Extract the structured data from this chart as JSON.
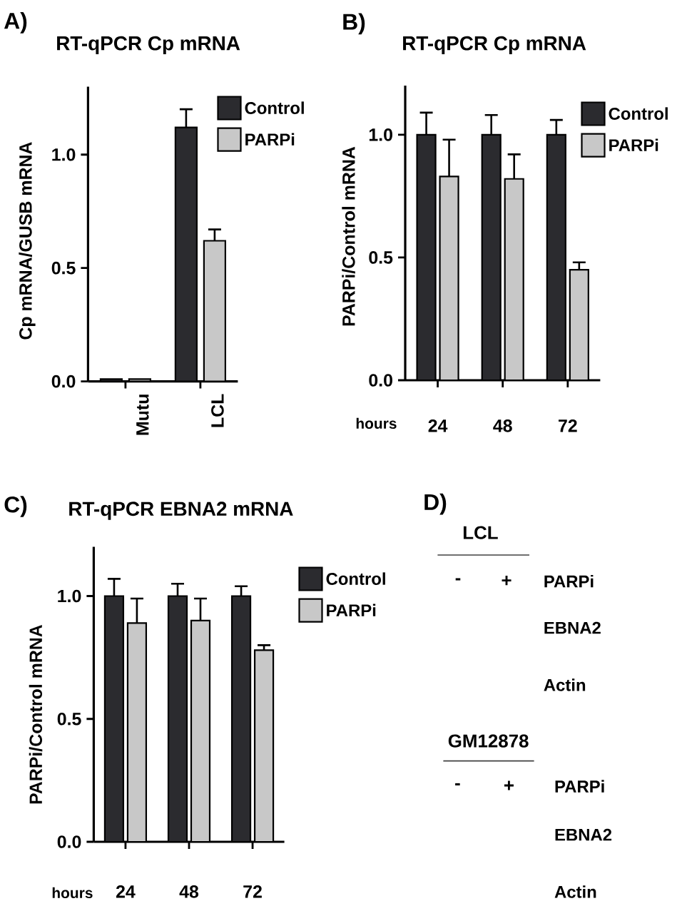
{
  "chart_data": [
    {
      "type": "bar",
      "title": "RT-qPCR Cp mRNA",
      "annotations": [
        "A)"
      ],
      "ylabel": "Cp mRNA/GUSB mRNA",
      "categories": [
        "Mutu",
        "LCL"
      ],
      "series": [
        {
          "name": "Control",
          "color": "#2b2b2f",
          "values": [
            0.01,
            1.12
          ],
          "errors": [
            null,
            [
              1.12,
              1.2
            ]
          ]
        },
        {
          "name": "PARPi",
          "color": "#c8c8c8",
          "values": [
            0.01,
            0.62
          ],
          "errors": [
            null,
            [
              0.62,
              0.67
            ]
          ]
        }
      ],
      "ylim": [
        0,
        1.3
      ],
      "yticks": [
        {
          "value": 0,
          "label": "0.0"
        },
        {
          "value": 0.5,
          "label": "0.5"
        },
        {
          "value": 1,
          "label": "1.0"
        }
      ],
      "legend": "top right"
    },
    {
      "type": "bar",
      "title": "RT-qPCR Cp mRNA",
      "annotations": [
        "B)"
      ],
      "ylabel": "PARPi/Control mRNA",
      "xlabel": "hours",
      "categories": [
        "24",
        "48",
        "72"
      ],
      "series": [
        {
          "name": "Control",
          "color": "#2b2b2f",
          "values": [
            1.0,
            1.0,
            1.0
          ],
          "errors": [
            [
              1.0,
              1.09
            ],
            [
              1.0,
              1.08
            ],
            [
              1.0,
              1.06
            ]
          ]
        },
        {
          "name": "PARPi",
          "color": "#c8c8c8",
          "values": [
            0.83,
            0.82,
            0.45
          ],
          "errors": [
            [
              0.83,
              0.98
            ],
            [
              0.82,
              0.92
            ],
            [
              0.45,
              0.48
            ]
          ]
        }
      ],
      "ylim": [
        0,
        1.2
      ],
      "yticks": [
        {
          "value": 0,
          "label": "0.0"
        },
        {
          "value": 0.5,
          "label": "0.5"
        },
        {
          "value": 1,
          "label": "1.0"
        }
      ],
      "legend": "top right"
    },
    {
      "type": "bar",
      "title": "RT-qPCR EBNA2 mRNA",
      "annotations": [
        "C)"
      ],
      "ylabel": "PARPi/Control mRNA",
      "xlabel": "hours",
      "categories": [
        "24",
        "48",
        "72"
      ],
      "series": [
        {
          "name": "Control",
          "color": "#2b2b2f",
          "values": [
            1.0,
            1.0,
            1.0
          ],
          "errors": [
            [
              1.0,
              1.07
            ],
            [
              1.0,
              1.05
            ],
            [
              1.0,
              1.04
            ]
          ]
        },
        {
          "name": "PARPi",
          "color": "#c8c8c8",
          "values": [
            0.89,
            0.9,
            0.78
          ],
          "errors": [
            [
              0.89,
              0.99
            ],
            [
              0.9,
              0.99
            ],
            [
              0.78,
              0.8
            ]
          ]
        }
      ],
      "ylim": [
        0,
        1.2
      ],
      "yticks": [
        {
          "value": 0,
          "label": "0.0"
        },
        {
          "value": 0.5,
          "label": "0.5"
        },
        {
          "value": 1,
          "label": "1.0"
        }
      ],
      "legend": "top right"
    },
    {
      "type": "other",
      "annotations": [
        "D)",
        "LCL",
        "-",
        "+",
        "PARPi",
        "EBNA2",
        "Actin",
        "GM12878",
        "-",
        "+",
        "PARPi",
        "EBNA2",
        "Actin"
      ]
    }
  ]
}
